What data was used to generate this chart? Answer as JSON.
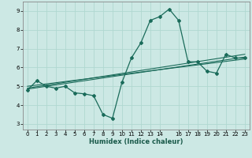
{
  "xlabel": "Humidex (Indice chaleur)",
  "bg_color": "#cce8e4",
  "grid_color": "#b0d8d0",
  "line_color": "#1a6b5a",
  "xlim": [
    -0.5,
    23.5
  ],
  "ylim": [
    2.7,
    9.5
  ],
  "xticks": [
    0,
    1,
    2,
    3,
    4,
    5,
    6,
    7,
    8,
    9,
    10,
    11,
    12,
    13,
    14,
    16,
    17,
    18,
    19,
    20,
    21,
    22,
    23
  ],
  "yticks": [
    3,
    4,
    5,
    6,
    7,
    8,
    9
  ],
  "line1_x": [
    0,
    1,
    2,
    3,
    4,
    5,
    6,
    7,
    8,
    9,
    10,
    11,
    12,
    13,
    14,
    15,
    16,
    17,
    18,
    19,
    20,
    21,
    22,
    23
  ],
  "line1_y": [
    4.8,
    5.3,
    5.0,
    4.9,
    5.0,
    4.65,
    4.6,
    4.5,
    3.5,
    3.3,
    5.2,
    6.5,
    7.3,
    8.5,
    8.7,
    9.1,
    8.5,
    6.3,
    6.3,
    5.8,
    5.7,
    6.7,
    6.5,
    6.5
  ],
  "line2_x": [
    0,
    23
  ],
  "line2_y": [
    4.85,
    6.55
  ],
  "line3_x": [
    0,
    23
  ],
  "line3_y": [
    5.0,
    6.45
  ],
  "line4_x": [
    0,
    23
  ],
  "line4_y": [
    4.9,
    6.7
  ]
}
